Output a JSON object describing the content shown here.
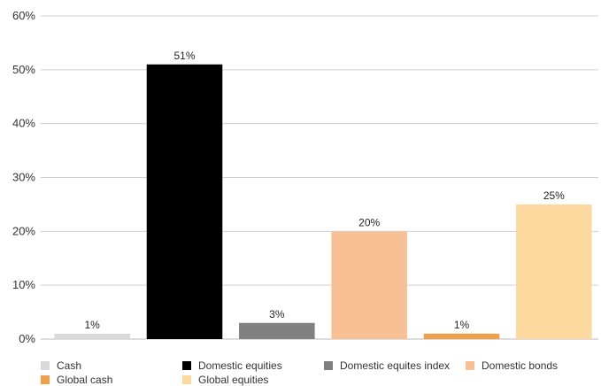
{
  "chart_data": {
    "type": "bar",
    "categories": [
      "Cash",
      "Domestic equities",
      "Domestic equites index",
      "Domestic bonds",
      "Global cash",
      "Global equities"
    ],
    "values": [
      1,
      51,
      3,
      20,
      1,
      25
    ],
    "data_labels": [
      "1%",
      "51%",
      "3%",
      "20%",
      "1%",
      "25%"
    ],
    "colors": [
      "#d9d9d9",
      "#000000",
      "#808080",
      "#f8c195",
      "#f0a04b",
      "#fdd9a0"
    ],
    "ylim": [
      0,
      60
    ],
    "yticks": [
      0,
      10,
      20,
      30,
      40,
      50,
      60
    ],
    "ytick_labels": [
      "0%",
      "10%",
      "20%",
      "30%",
      "40%",
      "50%",
      "60%"
    ],
    "grid": true,
    "legend_position": "bottom",
    "title": "",
    "xlabel": "",
    "ylabel": ""
  }
}
